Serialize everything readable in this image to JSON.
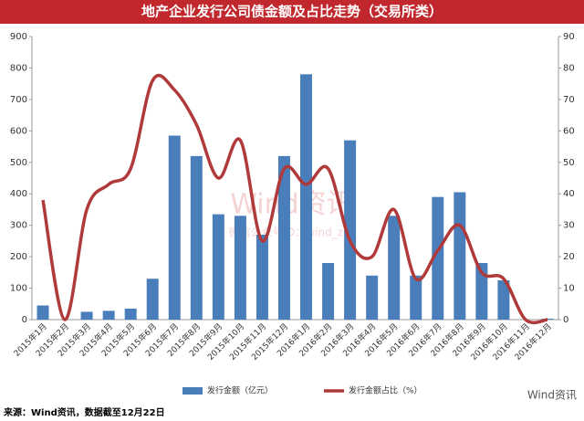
{
  "chart_data": {
    "type": "combo",
    "title": "地产企业发行公司债金额及占比走势（交易所类）",
    "categories": [
      "2015年1月",
      "2015年2月",
      "2015年3月",
      "2015年4月",
      "2015年5月",
      "2015年6月",
      "2015年7月",
      "2015年8月",
      "2015年9月",
      "2015年10月",
      "2015年11月",
      "2015年12月",
      "2016年1月",
      "2016年2月",
      "2016年3月",
      "2016年4月",
      "2016年5月",
      "2016年6月",
      "2016年7月",
      "2016年8月",
      "2016年9月",
      "2016年10月",
      "2016年11月",
      "2016年12月"
    ],
    "series": [
      {
        "name": "发行金额（亿元）",
        "color": "#4a7ebb",
        "type": "bar",
        "values": [
          45,
          0,
          25,
          28,
          35,
          130,
          585,
          520,
          335,
          330,
          270,
          520,
          780,
          180,
          570,
          140,
          330,
          140,
          390,
          405,
          180,
          125,
          0,
          3
        ]
      },
      {
        "name": "发行金额占比（%）",
        "color": "#b03a3a",
        "type": "line",
        "axis": "y2",
        "values": [
          38,
          0,
          35,
          43,
          48,
          76,
          73,
          62,
          45,
          57,
          25,
          48,
          43,
          48,
          25,
          20,
          35,
          13,
          22,
          30,
          15,
          13,
          0,
          0
        ]
      }
    ],
    "ylim": [
      0,
      900
    ],
    "yticks": [
      0,
      100,
      200,
      300,
      400,
      500,
      600,
      700,
      800,
      900
    ],
    "y2lim": [
      0,
      90
    ],
    "y2ticks": [
      0,
      10,
      20,
      30,
      40,
      50,
      60,
      70,
      80,
      90
    ],
    "grid": false,
    "source": "来源：Wind资讯，数据截至12月22日",
    "watermark": "Wind资讯",
    "watermark_sub": "微信公众号ID：wind_zxs",
    "logo": "Wind资讯"
  }
}
